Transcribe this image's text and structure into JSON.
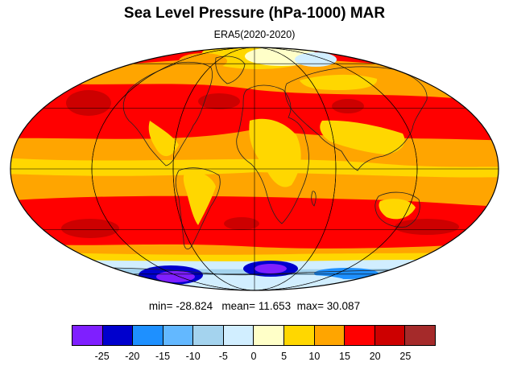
{
  "title": "Sea Level Pressure (hPa-1000) MAR",
  "subtitle": "ERA5(2020-2020)",
  "stats": {
    "min_label": "min=",
    "min": "-28.824",
    "mean_label": "mean=",
    "mean": "11.653",
    "max_label": "max=",
    "max": "30.087"
  },
  "projection": "mollweide",
  "colorbar": {
    "colors": [
      "#7f1fff",
      "#0000cd",
      "#1e90ff",
      "#63b8ff",
      "#a4d3ee",
      "#d1eeff",
      "#ffffc8",
      "#ffd700",
      "#ffa500",
      "#ff0000",
      "#cd0000",
      "#a52a2a"
    ],
    "ticks": [
      "-25",
      "-20",
      "-15",
      "-10",
      "-5",
      "0",
      "5",
      "10",
      "15",
      "20",
      "25"
    ]
  },
  "field_colors": {
    "ocean_bg": "#ffa500",
    "high": "#ff0000",
    "very_high": "#cd0000",
    "land_mid": "#ffd700",
    "low_pale": "#ffffc8",
    "low_light": "#d1eeff",
    "low_sky": "#a4d3ee",
    "low_blue": "#63b8ff",
    "low_deep": "#1e90ff",
    "low_navy": "#0000cd",
    "low_purple": "#7f1fff"
  }
}
